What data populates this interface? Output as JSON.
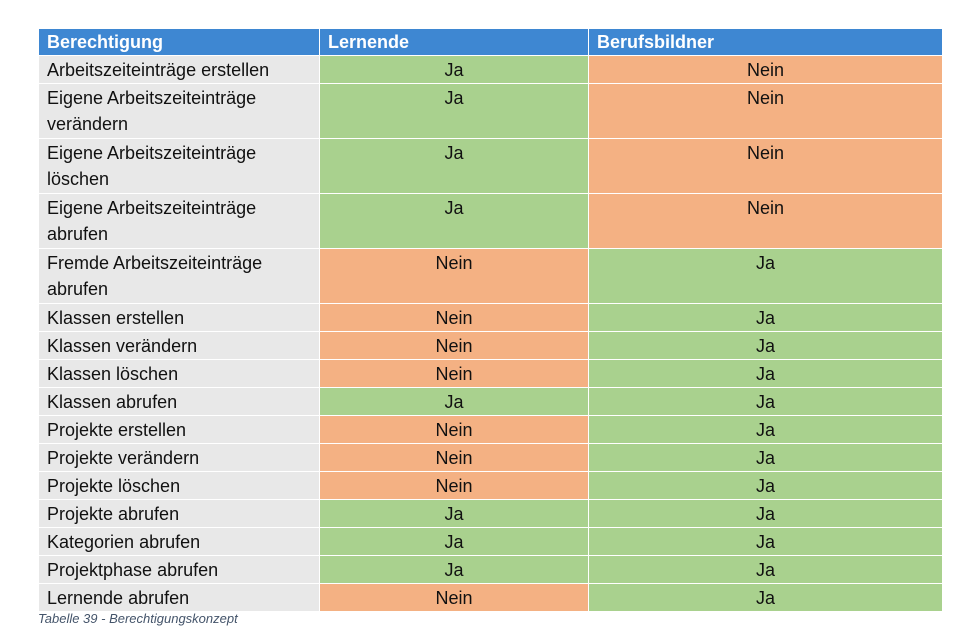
{
  "table": {
    "headers": [
      "Berechtigung",
      "Lernende",
      "Berufsbildner"
    ],
    "rows": [
      {
        "label": "Arbeitszeiteinträge erstellen",
        "lernende": "Ja",
        "berufsbildner": "Nein",
        "wrap": false
      },
      {
        "label": "Eigene Arbeitszeiteinträge verändern",
        "lernende": "Ja",
        "berufsbildner": "Nein",
        "wrap": true
      },
      {
        "label": "Eigene Arbeitszeiteinträge löschen",
        "lernende": "Ja",
        "berufsbildner": "Nein",
        "wrap": true
      },
      {
        "label": "Eigene Arbeitszeiteinträge abrufen",
        "lernende": "Ja",
        "berufsbildner": "Nein",
        "wrap": true
      },
      {
        "label": "Fremde Arbeitszeiteinträge abrufen",
        "lernende": "Nein",
        "berufsbildner": "Ja",
        "wrap": true
      },
      {
        "label": "Klassen erstellen",
        "lernende": "Nein",
        "berufsbildner": "Ja",
        "wrap": false
      },
      {
        "label": "Klassen verändern",
        "lernende": "Nein",
        "berufsbildner": "Ja",
        "wrap": false
      },
      {
        "label": "Klassen löschen",
        "lernende": "Nein",
        "berufsbildner": "Ja",
        "wrap": false
      },
      {
        "label": "Klassen abrufen",
        "lernende": "Ja",
        "berufsbildner": "Ja",
        "wrap": false
      },
      {
        "label": "Projekte erstellen",
        "lernende": "Nein",
        "berufsbildner": "Ja",
        "wrap": false
      },
      {
        "label": "Projekte verändern",
        "lernende": "Nein",
        "berufsbildner": "Ja",
        "wrap": false
      },
      {
        "label": "Projekte löschen",
        "lernende": "Nein",
        "berufsbildner": "Ja",
        "wrap": false
      },
      {
        "label": "Projekte abrufen",
        "lernende": "Ja",
        "berufsbildner": "Ja",
        "wrap": false
      },
      {
        "label": "Kategorien abrufen",
        "lernende": "Ja",
        "berufsbildner": "Ja",
        "wrap": false
      },
      {
        "label": "Projektphase abrufen",
        "lernende": "Ja",
        "berufsbildner": "Ja",
        "wrap": false
      },
      {
        "label": "Lernende abrufen",
        "lernende": "Nein",
        "berufsbildner": "Ja",
        "wrap": false
      }
    ]
  },
  "caption": "Tabelle 39 - Berechtigungskonzept",
  "colors": {
    "header": "#3e87d2",
    "label_cell": "#e8e8e8",
    "yes": "#a9d18e",
    "no": "#f4b183"
  }
}
